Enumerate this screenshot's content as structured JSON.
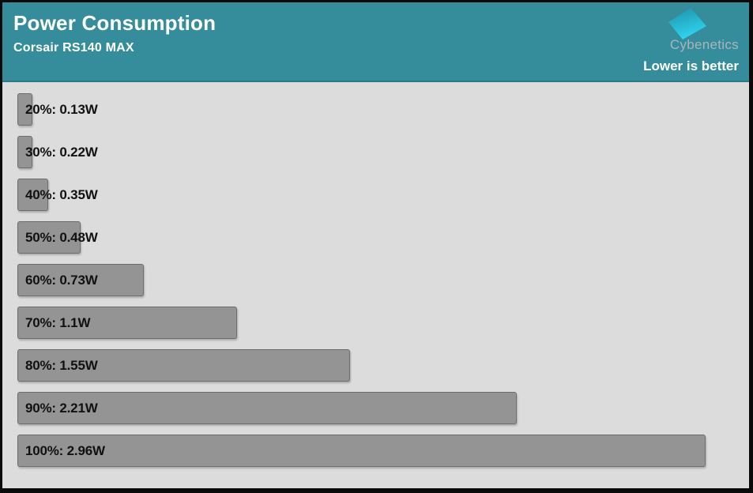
{
  "header": {
    "title": "Power Consumption",
    "subtitle": "Corsair RS140 MAX",
    "brand": "Cybenetics",
    "note": "Lower is better"
  },
  "colors": {
    "header_bg": "#358C9B",
    "body_bg": "#DCDCDC",
    "bar_fill": "#949494",
    "bar_border": "#6D6D6D",
    "label_text": "#111111",
    "title_text": "#FFFFFF",
    "brand_text": "#A9B6BC",
    "logo_gradient_start": "#1E8FA6",
    "logo_gradient_end": "#2FD4F0",
    "frame": "#0A0A0A"
  },
  "chart_data": {
    "type": "bar",
    "orientation": "horizontal",
    "title": "Power Consumption",
    "subtitle": "Corsair RS140 MAX",
    "annotation": "Lower is better",
    "unit": "W",
    "categories": [
      "20%",
      "30%",
      "40%",
      "50%",
      "60%",
      "70%",
      "80%",
      "90%",
      "100%"
    ],
    "values": [
      0.13,
      0.22,
      0.35,
      0.48,
      0.73,
      1.1,
      1.55,
      2.21,
      2.96
    ],
    "labels": [
      "20%: 0.13W",
      "30%: 0.22W",
      "40%: 0.35W",
      "50%: 0.48W",
      "60%: 0.73W",
      "70%: 1.1W",
      "80%: 1.55W",
      "90%: 2.21W",
      "100%: 2.96W"
    ],
    "xlim": [
      0,
      2.96
    ],
    "grid": false,
    "legend": "none"
  }
}
